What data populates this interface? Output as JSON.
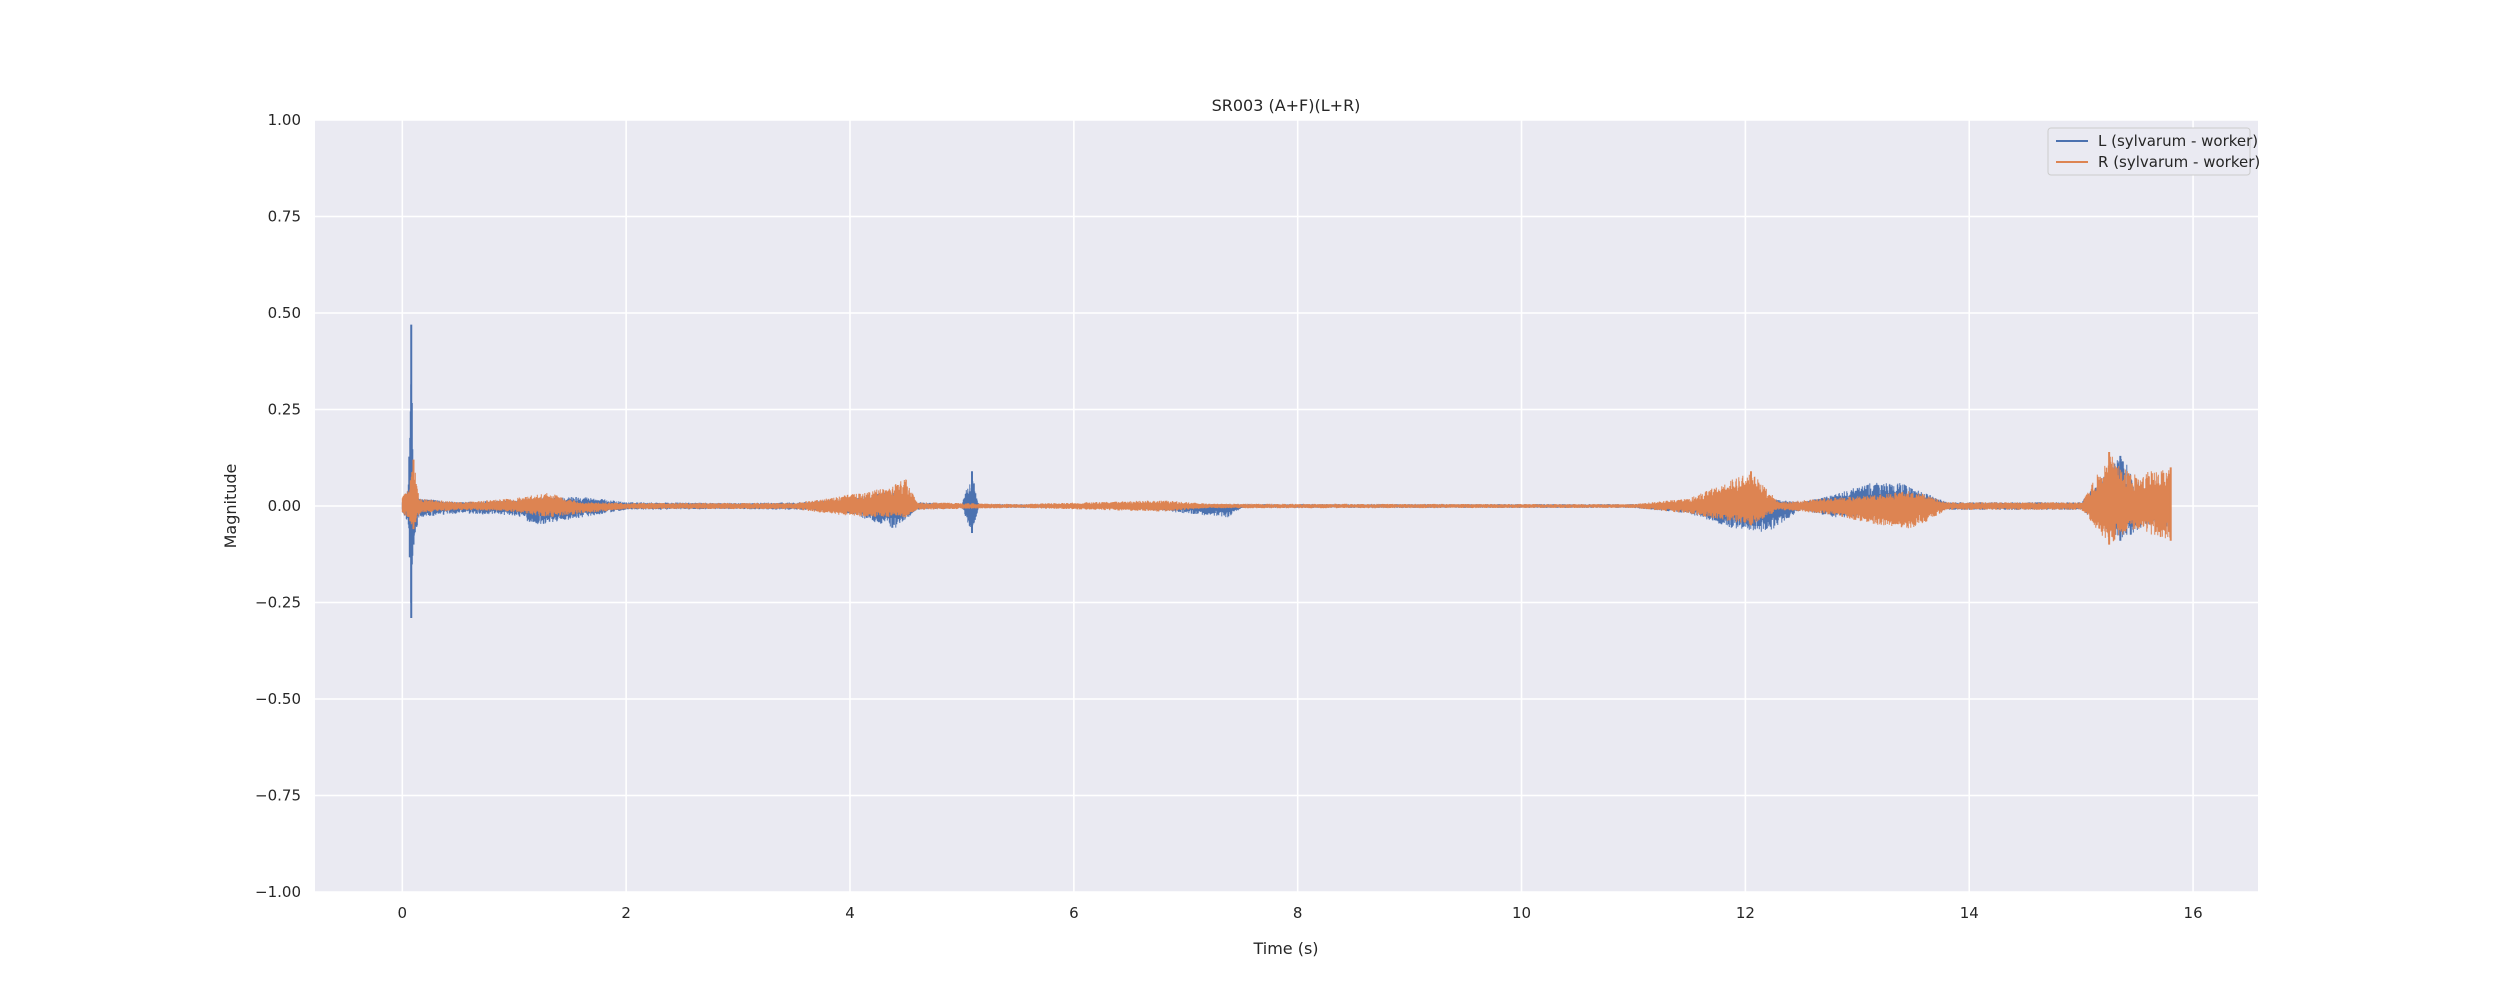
{
  "chart_data": {
    "type": "line",
    "title": "SR003 (A+F)(L+R)",
    "xlabel": "Time (s)",
    "ylabel": "Magnitude",
    "xlim": [
      -0.78,
      16.58
    ],
    "ylim": [
      -1.0,
      1.0
    ],
    "x_ticks": [
      0,
      2,
      4,
      6,
      8,
      10,
      12,
      14,
      16
    ],
    "y_ticks": [
      -1.0,
      -0.75,
      -0.5,
      -0.25,
      0.0,
      0.25,
      0.5,
      0.75,
      1.0
    ],
    "x_tick_labels": [
      "0",
      "2",
      "4",
      "6",
      "8",
      "10",
      "12",
      "14",
      "16"
    ],
    "y_tick_labels": [
      "−1.00",
      "−0.75",
      "−0.50",
      "−0.25",
      "0.00",
      "0.25",
      "0.50",
      "0.75",
      "1.00"
    ],
    "grid": true,
    "legend_position": "top-right",
    "background": "#eaeaf2",
    "series": [
      {
        "name": "L (sylvarum - worker)",
        "color": "#4c72b0",
        "envelope": [
          {
            "x": 0.0,
            "max": 0.02,
            "min": -0.02
          },
          {
            "x": 0.05,
            "max": 0.04,
            "min": -0.04
          },
          {
            "x": 0.08,
            "max": 0.47,
            "min": -0.29
          },
          {
            "x": 0.1,
            "max": 0.05,
            "min": -0.1
          },
          {
            "x": 0.15,
            "max": 0.02,
            "min": -0.03
          },
          {
            "x": 0.5,
            "max": 0.01,
            "min": -0.02
          },
          {
            "x": 1.0,
            "max": 0.015,
            "min": -0.025
          },
          {
            "x": 1.2,
            "max": 0.02,
            "min": -0.05
          },
          {
            "x": 1.6,
            "max": 0.025,
            "min": -0.03
          },
          {
            "x": 2.0,
            "max": 0.01,
            "min": -0.01
          },
          {
            "x": 3.0,
            "max": 0.008,
            "min": -0.008
          },
          {
            "x": 3.6,
            "max": 0.01,
            "min": -0.01
          },
          {
            "x": 4.0,
            "max": 0.02,
            "min": -0.02
          },
          {
            "x": 4.4,
            "max": 0.04,
            "min": -0.06
          },
          {
            "x": 4.6,
            "max": 0.01,
            "min": -0.01
          },
          {
            "x": 5.0,
            "max": 0.005,
            "min": -0.005
          },
          {
            "x": 5.09,
            "max": 0.09,
            "min": -0.07
          },
          {
            "x": 5.15,
            "max": 0.005,
            "min": -0.005
          },
          {
            "x": 6.5,
            "max": 0.005,
            "min": -0.005
          },
          {
            "x": 7.38,
            "max": 0.005,
            "min": -0.03
          },
          {
            "x": 7.5,
            "max": 0.005,
            "min": -0.005
          },
          {
            "x": 11.0,
            "max": 0.005,
            "min": -0.005
          },
          {
            "x": 11.5,
            "max": 0.01,
            "min": -0.02
          },
          {
            "x": 11.9,
            "max": 0.03,
            "min": -0.06
          },
          {
            "x": 12.2,
            "max": 0.02,
            "min": -0.07
          },
          {
            "x": 12.5,
            "max": 0.01,
            "min": -0.01
          },
          {
            "x": 12.8,
            "max": 0.03,
            "min": -0.03
          },
          {
            "x": 13.1,
            "max": 0.06,
            "min": -0.03
          },
          {
            "x": 13.4,
            "max": 0.06,
            "min": -0.03
          },
          {
            "x": 13.8,
            "max": 0.01,
            "min": -0.01
          },
          {
            "x": 15.0,
            "max": 0.01,
            "min": -0.01
          },
          {
            "x": 15.35,
            "max": 0.13,
            "min": -0.09
          },
          {
            "x": 15.6,
            "max": 0.03,
            "min": -0.05
          },
          {
            "x": 15.8,
            "max": 0.05,
            "min": -0.06
          }
        ]
      },
      {
        "name": "R (sylvarum - worker)",
        "color": "#dd8452",
        "envelope": [
          {
            "x": 0.0,
            "max": 0.03,
            "min": -0.02
          },
          {
            "x": 0.05,
            "max": 0.04,
            "min": -0.03
          },
          {
            "x": 0.1,
            "max": 0.12,
            "min": -0.06
          },
          {
            "x": 0.15,
            "max": 0.02,
            "min": -0.02
          },
          {
            "x": 0.5,
            "max": 0.01,
            "min": -0.01
          },
          {
            "x": 1.0,
            "max": 0.02,
            "min": -0.015
          },
          {
            "x": 1.3,
            "max": 0.035,
            "min": -0.03
          },
          {
            "x": 1.6,
            "max": 0.01,
            "min": -0.02
          },
          {
            "x": 2.0,
            "max": 0.008,
            "min": -0.008
          },
          {
            "x": 3.5,
            "max": 0.008,
            "min": -0.008
          },
          {
            "x": 3.8,
            "max": 0.02,
            "min": -0.02
          },
          {
            "x": 4.2,
            "max": 0.04,
            "min": -0.03
          },
          {
            "x": 4.5,
            "max": 0.07,
            "min": -0.03
          },
          {
            "x": 4.6,
            "max": 0.01,
            "min": -0.01
          },
          {
            "x": 5.5,
            "max": 0.005,
            "min": -0.005
          },
          {
            "x": 6.8,
            "max": 0.015,
            "min": -0.015
          },
          {
            "x": 7.2,
            "max": 0.006,
            "min": -0.006
          },
          {
            "x": 11.0,
            "max": 0.005,
            "min": -0.005
          },
          {
            "x": 11.5,
            "max": 0.02,
            "min": -0.02
          },
          {
            "x": 12.05,
            "max": 0.09,
            "min": -0.05
          },
          {
            "x": 12.3,
            "max": 0.01,
            "min": -0.01
          },
          {
            "x": 12.7,
            "max": 0.02,
            "min": -0.02
          },
          {
            "x": 13.2,
            "max": 0.03,
            "min": -0.05
          },
          {
            "x": 13.5,
            "max": 0.04,
            "min": -0.06
          },
          {
            "x": 13.8,
            "max": 0.01,
            "min": -0.01
          },
          {
            "x": 15.0,
            "max": 0.01,
            "min": -0.01
          },
          {
            "x": 15.25,
            "max": 0.14,
            "min": -0.1
          },
          {
            "x": 15.45,
            "max": 0.08,
            "min": -0.06
          },
          {
            "x": 15.8,
            "max": 0.1,
            "min": -0.09
          }
        ]
      }
    ]
  }
}
